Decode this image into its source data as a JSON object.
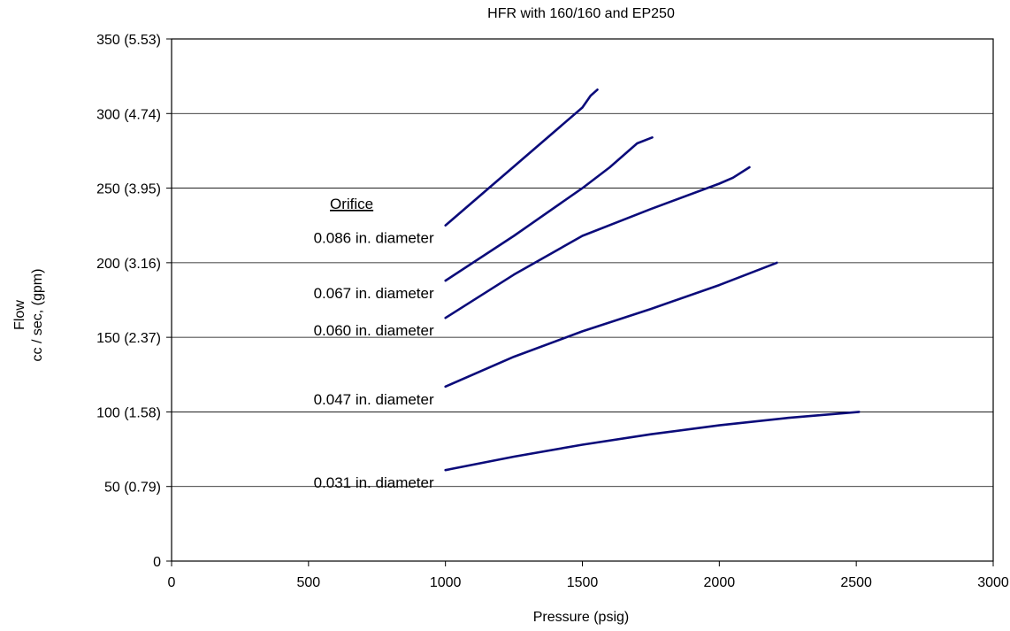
{
  "chart_data": {
    "type": "line",
    "title": "HFR with 160/160 and EP250",
    "xlabel": "Pressure (psig)",
    "ylabel_lines": [
      "Flow",
      "cc / sec, (gpm)"
    ],
    "xlim": [
      0,
      3000
    ],
    "ylim": [
      0,
      350
    ],
    "x_ticks": [
      0,
      500,
      1000,
      1500,
      2000,
      2500,
      3000
    ],
    "x_tick_labels": [
      "0",
      "500",
      "1000",
      "1500",
      "2000",
      "2500",
      "3000"
    ],
    "y_ticks": [
      0,
      50,
      100,
      150,
      200,
      250,
      300,
      350
    ],
    "y_tick_labels": [
      "0",
      "50 (0.79)",
      "100 (1.58)",
      "150 (2.37)",
      "200 (3.16)",
      "250 (3.95)",
      "300 (4.74)",
      "350 (5.53)"
    ],
    "grid": "horizontal",
    "legend_title": "Orifice",
    "line_color": "#0b0b7a",
    "series": [
      {
        "name": "0.086 in. diameter",
        "points": [
          [
            1000,
            225
          ],
          [
            1500,
            304
          ],
          [
            1530,
            312
          ],
          [
            1555,
            316
          ]
        ]
      },
      {
        "name": "0.067 in. diameter",
        "points": [
          [
            1000,
            188
          ],
          [
            1250,
            218
          ],
          [
            1500,
            250
          ],
          [
            1600,
            264
          ],
          [
            1700,
            280
          ],
          [
            1755,
            284
          ]
        ]
      },
      {
        "name": "0.060 in. diameter",
        "points": [
          [
            1000,
            163
          ],
          [
            1250,
            192
          ],
          [
            1500,
            218
          ],
          [
            1750,
            236
          ],
          [
            2000,
            253
          ],
          [
            2050,
            257
          ],
          [
            2110,
            264
          ]
        ]
      },
      {
        "name": "0.047 in. diameter",
        "points": [
          [
            1000,
            117
          ],
          [
            1250,
            137
          ],
          [
            1500,
            154
          ],
          [
            1750,
            169
          ],
          [
            2000,
            185
          ],
          [
            2210,
            200
          ]
        ]
      },
      {
        "name": "0.031 in. diameter",
        "points": [
          [
            1000,
            61
          ],
          [
            1250,
            70
          ],
          [
            1500,
            78
          ],
          [
            1750,
            85
          ],
          [
            2000,
            91
          ],
          [
            2250,
            96
          ],
          [
            2510,
            100
          ]
        ]
      }
    ]
  }
}
